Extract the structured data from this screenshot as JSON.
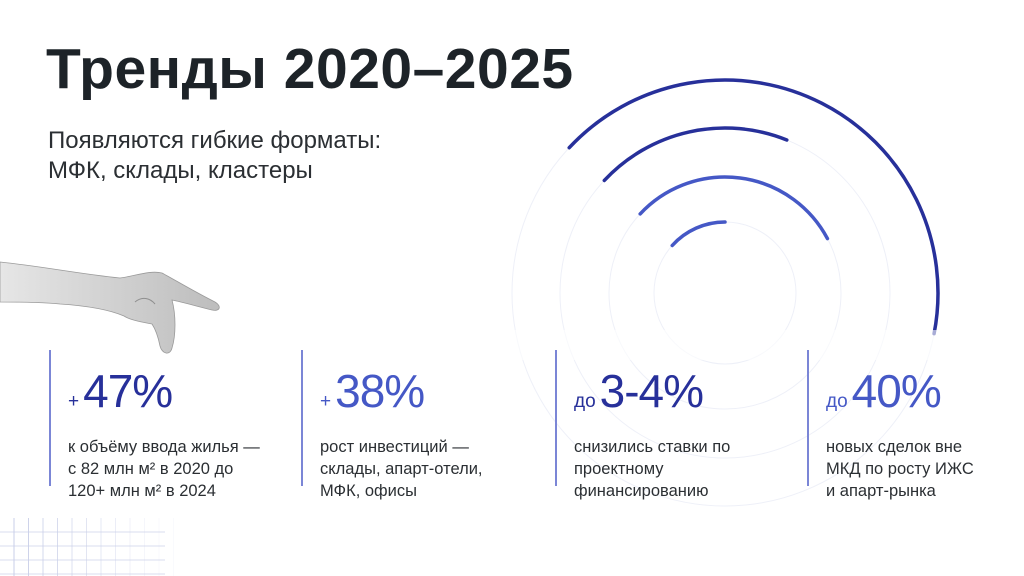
{
  "title": "Тренды 2020–2025",
  "subtitle": "Появляются гибкие форматы:\nМФК, склады, кластеры",
  "colors": {
    "dark_accent": "#27309a",
    "light_accent": "#4558c6",
    "text": "#1d2328"
  },
  "illustration": {
    "hand": "pointing-hand-icon",
    "rings": "concentric-arcs",
    "grid": "faded-grid"
  },
  "stats": [
    {
      "prefix": "+",
      "value": "47%",
      "description": "к объёму ввода жилья —\nс 82 млн м² в 2020 до\n120+ млн м² в 2024"
    },
    {
      "prefix": "+",
      "value": "38%",
      "description": "рост инвестиций —\nсклады, апарт-отели,\nМФК, офисы"
    },
    {
      "prefix": "до",
      "value": "3-4%",
      "description": "снизились ставки по\nпроектному\nфинансированию"
    },
    {
      "prefix": "до",
      "value": "40%",
      "description": "новых сделок вне\nМКД по росту ИЖС\nи апарт-рынка"
    }
  ]
}
